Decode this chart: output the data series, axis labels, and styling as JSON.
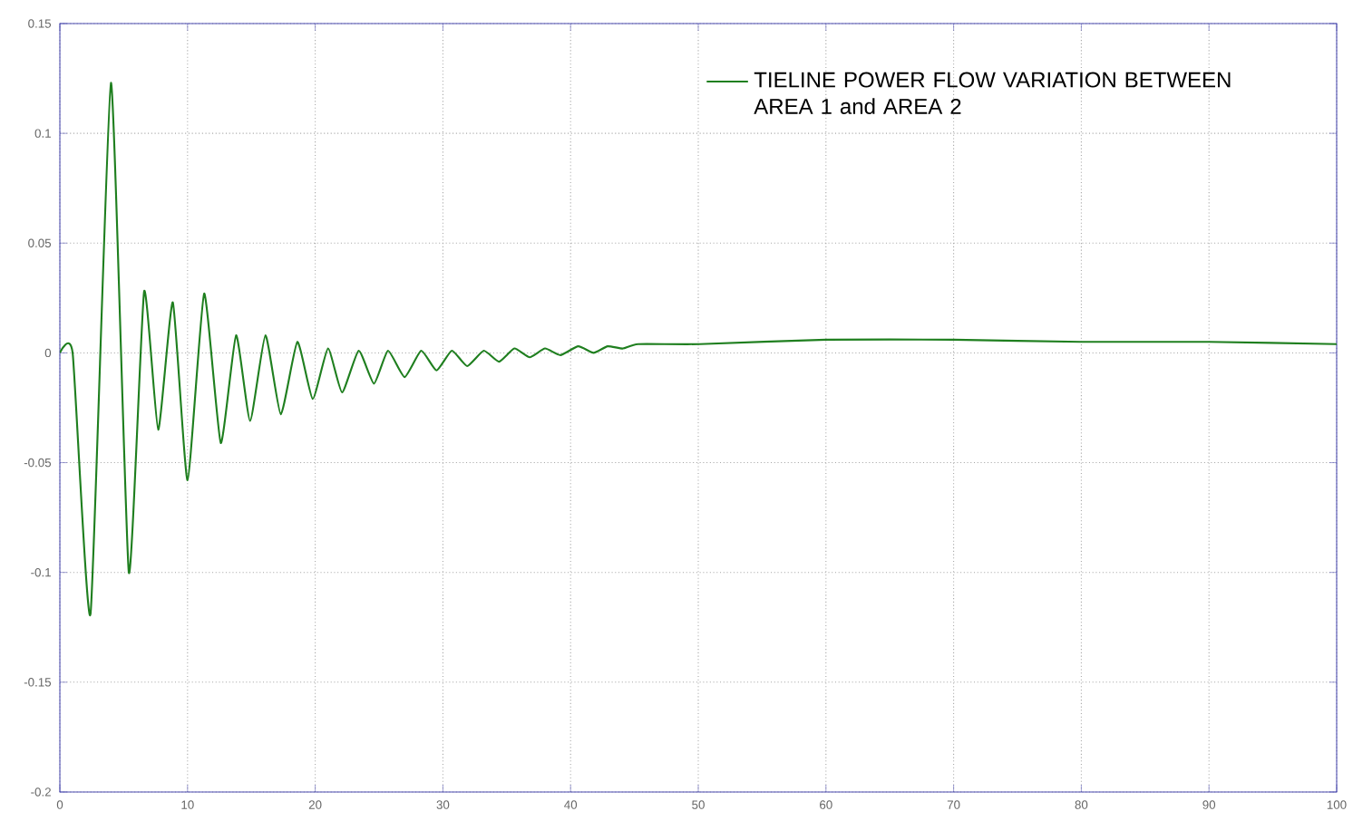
{
  "chart_data": {
    "type": "line",
    "xlim": [
      0,
      100
    ],
    "ylim": [
      -0.2,
      0.15
    ],
    "xticks": [
      0,
      10,
      20,
      30,
      40,
      50,
      60,
      70,
      80,
      90,
      100
    ],
    "yticks": [
      -0.2,
      -0.15,
      -0.1,
      -0.05,
      0,
      0.05,
      0.1,
      0.15
    ],
    "grid": true,
    "legend": "top right",
    "series": [
      {
        "name": "TIELINE POWER FLOW VARIATION BETWEEN AREA 1 and AREA 2",
        "color": "#1f7f1f",
        "x": [
          0,
          1.0,
          2.4,
          4.0,
          5.4,
          6.6,
          7.7,
          8.85,
          10.0,
          11.3,
          12.6,
          13.8,
          14.9,
          16.1,
          17.3,
          18.6,
          19.8,
          21.0,
          22.1,
          23.4,
          24.6,
          25.7,
          27.0,
          28.3,
          29.5,
          30.7,
          31.9,
          33.2,
          34.4,
          35.6,
          36.8,
          38.0,
          39.2,
          40.6,
          41.8,
          42.9,
          44.1,
          45.3,
          50.1,
          60.0,
          70.0,
          80.0,
          90.0,
          100.0
        ],
        "values": [
          0,
          0,
          -0.119,
          0.123,
          -0.1,
          0.028,
          -0.035,
          0.023,
          -0.058,
          0.027,
          -0.041,
          0.008,
          -0.031,
          0.008,
          -0.028,
          0.005,
          -0.021,
          0.002,
          -0.018,
          0.001,
          -0.014,
          0.001,
          -0.011,
          0.001,
          -0.008,
          0.001,
          -0.006,
          0.001,
          -0.004,
          0.002,
          -0.002,
          0.002,
          -0.001,
          0.003,
          0.0,
          0.003,
          0.002,
          0.004,
          0.004,
          0.006,
          0.006,
          0.005,
          0.005,
          0.004
        ]
      }
    ]
  }
}
